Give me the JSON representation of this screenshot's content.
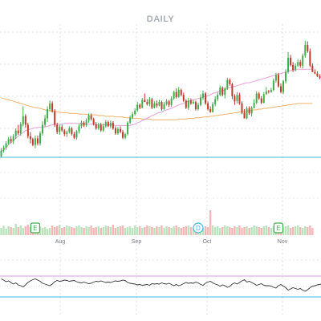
{
  "chart_data": {
    "type": "candlestick",
    "title": "DAILY",
    "x_ticks": [
      "Aug",
      "Sep",
      "Oct",
      "Nov"
    ],
    "grid": true,
    "colors": {
      "up": "#3fae4a",
      "down": "#c0392b",
      "ma_short": "#e8a0d8",
      "ma_long": "#f5b26b",
      "support_line": "#45b6de",
      "volume_up": "#b9e4bd",
      "volume_down": "#f4b7b7",
      "oscillator": "#333333",
      "osc_upper": "#c9a0e0",
      "osc_lower": "#45b6de",
      "marker_earnings": "#3fae4a",
      "marker_dividend": "#45b6de"
    },
    "candles_ohlc": [
      [
        194,
        186,
        196,
        183
      ],
      [
        186,
        182,
        189,
        179
      ],
      [
        182,
        176,
        185,
        173
      ],
      [
        176,
        170,
        178,
        167
      ],
      [
        170,
        173,
        176,
        166
      ],
      [
        173,
        166,
        177,
        163
      ],
      [
        166,
        158,
        170,
        155
      ],
      [
        158,
        162,
        164,
        150
      ],
      [
        162,
        149,
        165,
        146
      ],
      [
        149,
        138,
        152,
        124
      ],
      [
        138,
        150,
        154,
        135
      ],
      [
        150,
        166,
        169,
        147
      ],
      [
        166,
        170,
        176,
        160
      ],
      [
        170,
        178,
        180,
        168
      ],
      [
        178,
        169,
        183,
        165
      ],
      [
        169,
        176,
        179,
        165
      ],
      [
        176,
        162,
        179,
        159
      ],
      [
        162,
        150,
        165,
        145
      ],
      [
        150,
        141,
        153,
        136
      ],
      [
        141,
        128,
        146,
        124
      ],
      [
        128,
        120,
        131,
        116
      ],
      [
        120,
        131,
        133,
        117
      ],
      [
        131,
        150,
        153,
        128
      ],
      [
        150,
        160,
        163,
        147
      ],
      [
        160,
        153,
        164,
        150
      ],
      [
        153,
        158,
        160,
        150
      ],
      [
        158,
        163,
        166,
        156
      ],
      [
        163,
        160,
        167,
        158
      ],
      [
        160,
        155,
        162,
        152
      ],
      [
        155,
        163,
        165,
        153
      ],
      [
        163,
        168,
        170,
        160
      ],
      [
        168,
        159,
        171,
        157
      ],
      [
        159,
        152,
        162,
        149
      ],
      [
        152,
        147,
        155,
        144
      ],
      [
        147,
        151,
        153,
        145
      ],
      [
        151,
        144,
        153,
        141
      ],
      [
        144,
        137,
        147,
        134
      ],
      [
        137,
        142,
        144,
        134
      ],
      [
        142,
        149,
        151,
        140
      ],
      [
        149,
        155,
        157,
        146
      ],
      [
        155,
        150,
        157,
        147
      ],
      [
        150,
        158,
        160,
        147
      ],
      [
        158,
        152,
        160,
        148
      ],
      [
        152,
        146,
        154,
        143
      ],
      [
        146,
        152,
        153,
        144
      ],
      [
        152,
        147,
        155,
        144
      ],
      [
        147,
        155,
        157,
        145
      ],
      [
        155,
        162,
        164,
        152
      ],
      [
        162,
        156,
        164,
        153
      ],
      [
        156,
        160,
        162,
        152
      ],
      [
        160,
        168,
        170,
        157
      ],
      [
        168,
        163,
        170,
        161
      ],
      [
        163,
        147,
        165,
        145
      ],
      [
        147,
        140,
        149,
        137
      ],
      [
        140,
        135,
        142,
        132
      ],
      [
        135,
        130,
        137,
        127
      ],
      [
        130,
        122,
        132,
        118
      ],
      [
        122,
        126,
        128,
        120
      ],
      [
        126,
        115,
        127,
        112
      ],
      [
        115,
        118,
        118,
        106
      ],
      [
        118,
        121,
        123,
        114
      ],
      [
        121,
        114,
        124,
        111
      ],
      [
        114,
        126,
        128,
        112
      ],
      [
        126,
        120,
        127,
        117
      ],
      [
        120,
        123,
        126,
        116
      ],
      [
        123,
        118,
        124,
        115
      ],
      [
        118,
        128,
        130,
        116
      ],
      [
        128,
        121,
        129,
        118
      ],
      [
        121,
        117,
        123,
        114
      ],
      [
        117,
        122,
        125,
        115
      ],
      [
        122,
        113,
        125,
        110
      ],
      [
        113,
        104,
        115,
        102
      ],
      [
        104,
        111,
        113,
        99
      ],
      [
        111,
        101,
        112,
        97
      ],
      [
        101,
        108,
        110,
        99
      ],
      [
        108,
        116,
        118,
        105
      ],
      [
        116,
        126,
        128,
        114
      ],
      [
        126,
        116,
        129,
        112
      ],
      [
        116,
        120,
        122,
        113
      ],
      [
        120,
        118,
        121,
        115
      ],
      [
        118,
        128,
        130,
        116
      ],
      [
        128,
        122,
        130,
        119
      ],
      [
        122,
        112,
        124,
        107
      ],
      [
        112,
        106,
        115,
        102
      ],
      [
        106,
        120,
        122,
        104
      ],
      [
        120,
        128,
        130,
        117
      ],
      [
        128,
        132,
        133,
        124
      ],
      [
        132,
        121,
        133,
        118
      ],
      [
        121,
        114,
        124,
        110
      ],
      [
        114,
        108,
        117,
        104
      ],
      [
        108,
        98,
        110,
        95
      ],
      [
        98,
        108,
        110,
        96
      ],
      [
        108,
        99,
        113,
        97
      ],
      [
        99,
        87,
        101,
        84
      ],
      [
        87,
        93,
        95,
        85
      ],
      [
        93,
        110,
        114,
        91
      ],
      [
        110,
        117,
        122,
        107
      ],
      [
        117,
        108,
        120,
        104
      ],
      [
        108,
        120,
        122,
        105
      ],
      [
        120,
        133,
        135,
        117
      ],
      [
        133,
        141,
        141,
        128
      ],
      [
        141,
        127,
        142,
        124
      ],
      [
        127,
        134,
        136,
        124
      ],
      [
        134,
        126,
        138,
        124
      ],
      [
        126,
        119,
        127,
        114
      ],
      [
        119,
        106,
        121,
        103
      ],
      [
        106,
        113,
        115,
        104
      ],
      [
        113,
        119,
        121,
        110
      ],
      [
        119,
        107,
        120,
        104
      ],
      [
        107,
        103,
        108,
        97
      ],
      [
        103,
        104,
        106,
        101
      ],
      [
        104,
        101,
        105,
        98
      ],
      [
        101,
        88,
        103,
        85
      ],
      [
        88,
        80,
        91,
        77
      ],
      [
        80,
        96,
        98,
        77
      ],
      [
        96,
        104,
        106,
        92
      ],
      [
        104,
        89,
        107,
        87
      ],
      [
        89,
        76,
        92,
        72
      ],
      [
        76,
        56,
        78,
        48
      ],
      [
        56,
        66,
        68,
        52
      ],
      [
        66,
        73,
        76,
        62
      ],
      [
        73,
        67,
        75,
        64
      ],
      [
        67,
        62,
        69,
        58
      ],
      [
        62,
        67,
        70,
        59
      ],
      [
        67,
        53,
        71,
        50
      ],
      [
        53,
        38,
        56,
        32
      ],
      [
        38,
        47,
        49,
        33
      ],
      [
        47,
        67,
        69,
        43
      ],
      [
        67,
        76,
        76,
        64
      ],
      [
        76,
        78,
        79,
        72
      ],
      [
        78,
        82,
        83,
        75
      ],
      [
        82,
        84,
        86,
        79
      ],
      [
        84,
        90,
        92,
        81
      ]
    ],
    "ma_short_values": [
      188,
      185,
      182,
      178,
      175,
      172,
      169,
      166,
      163,
      161,
      158,
      157,
      156,
      155,
      154,
      154,
      153,
      153,
      153,
      152,
      151,
      150,
      149,
      149,
      149,
      149,
      148,
      148,
      148,
      148,
      148,
      148,
      148,
      148,
      148,
      149,
      149,
      149,
      149,
      150,
      150,
      150,
      150,
      150,
      150,
      150,
      150,
      151,
      151,
      151,
      151,
      151,
      151,
      151,
      150,
      149,
      147,
      146,
      144,
      142,
      141,
      139,
      137,
      136,
      134,
      133,
      132,
      130,
      129,
      128,
      127,
      125,
      124,
      122,
      121,
      120,
      118,
      117,
      116,
      115,
      114,
      113,
      112,
      111,
      110,
      109,
      108,
      106,
      105,
      104,
      103,
      102,
      101,
      99,
      98,
      97,
      96,
      95,
      94,
      93,
      92,
      91,
      91,
      90,
      89,
      88,
      87,
      86,
      85,
      84,
      83,
      82,
      81,
      80,
      79,
      78,
      77,
      76,
      75,
      74,
      73,
      73,
      72,
      72,
      72,
      72,
      72,
      72,
      72
    ],
    "ma_long_values": [
      112,
      113,
      114,
      115,
      116,
      117,
      118,
      119,
      120,
      121,
      122,
      123,
      124,
      125,
      126,
      126,
      127,
      128,
      129,
      130,
      130,
      131,
      131,
      132,
      132,
      133,
      133,
      133,
      134,
      134,
      134,
      134,
      135,
      135,
      135,
      135,
      136,
      136,
      136,
      136,
      137,
      137,
      137,
      138,
      138,
      138,
      138,
      139,
      139,
      139,
      139,
      140,
      140,
      140,
      141,
      141,
      141,
      141,
      142,
      142,
      142,
      142,
      143,
      143,
      143,
      143,
      143,
      143,
      143,
      143,
      143,
      143,
      143,
      142,
      142,
      142,
      142,
      141,
      141,
      141,
      140,
      140,
      140,
      139,
      139,
      139,
      138,
      138,
      137,
      137,
      136,
      136,
      135,
      135,
      134,
      134,
      133,
      133,
      132,
      132,
      131,
      131,
      130,
      130,
      129,
      129,
      128,
      128,
      127,
      127,
      126,
      126,
      125,
      125,
      124,
      124,
      123,
      123,
      122,
      122,
      121,
      121,
      120,
      120,
      120,
      120,
      120,
      120,
      120
    ],
    "volume_values": [
      9,
      12,
      8,
      11,
      10,
      9,
      14,
      10,
      12,
      9,
      11,
      13,
      10,
      9,
      12,
      10,
      11,
      9,
      10,
      8,
      9,
      12,
      10,
      11,
      13,
      9,
      10,
      12,
      11,
      10,
      9,
      11,
      12,
      10,
      9,
      11,
      10,
      12,
      9,
      10,
      11,
      9,
      10,
      12,
      11,
      10,
      13,
      9,
      10,
      11,
      12,
      9,
      10,
      11,
      9,
      12,
      10,
      11,
      9,
      10,
      12,
      11,
      10,
      9,
      11,
      10,
      12,
      9,
      11,
      10,
      9,
      11,
      12,
      10,
      9,
      10,
      11,
      12,
      10,
      9,
      11,
      10,
      12,
      9,
      11,
      10,
      31,
      12,
      10,
      11,
      9,
      10,
      12,
      11,
      10,
      9,
      11,
      10,
      12,
      9,
      10,
      11,
      9,
      10,
      12,
      11,
      10,
      9,
      11,
      12,
      10,
      9,
      11,
      10,
      12,
      9,
      10,
      11,
      12,
      9,
      10,
      11,
      12,
      10,
      9,
      11,
      10,
      12,
      9
    ],
    "event_markers": [
      {
        "label": "E",
        "kind": "earnings",
        "index": 14
      },
      {
        "label": "D",
        "kind": "dividend",
        "index": 81
      },
      {
        "label": "E",
        "kind": "earnings",
        "index": 114
      }
    ],
    "oscillator_values": [
      55,
      52,
      48,
      50,
      46,
      42,
      45,
      40,
      38,
      35,
      40,
      46,
      50,
      53,
      55,
      52,
      49,
      44,
      42,
      40,
      38,
      42,
      48,
      51,
      49,
      50,
      52,
      51,
      49,
      50,
      51,
      48,
      46,
      45,
      47,
      45,
      43,
      44,
      47,
      49,
      48,
      50,
      48,
      46,
      47,
      46,
      48,
      50,
      49,
      50,
      52,
      51,
      46,
      44,
      43,
      42,
      40,
      41,
      39,
      40,
      41,
      39,
      43,
      42,
      43,
      42,
      45,
      43,
      42,
      44,
      41,
      38,
      41,
      38,
      40,
      43,
      46,
      44,
      45,
      44,
      47,
      45,
      41,
      39,
      44,
      47,
      49,
      45,
      42,
      40,
      37,
      40,
      38,
      34,
      36,
      42,
      45,
      42,
      46,
      50,
      53,
      47,
      49,
      46,
      43,
      39,
      41,
      43,
      39,
      38,
      38,
      37,
      34,
      32,
      38,
      41,
      37,
      33,
      27,
      30,
      33,
      31,
      29,
      31,
      27,
      24,
      28,
      33,
      37,
      38,
      40,
      41,
      43
    ]
  }
}
